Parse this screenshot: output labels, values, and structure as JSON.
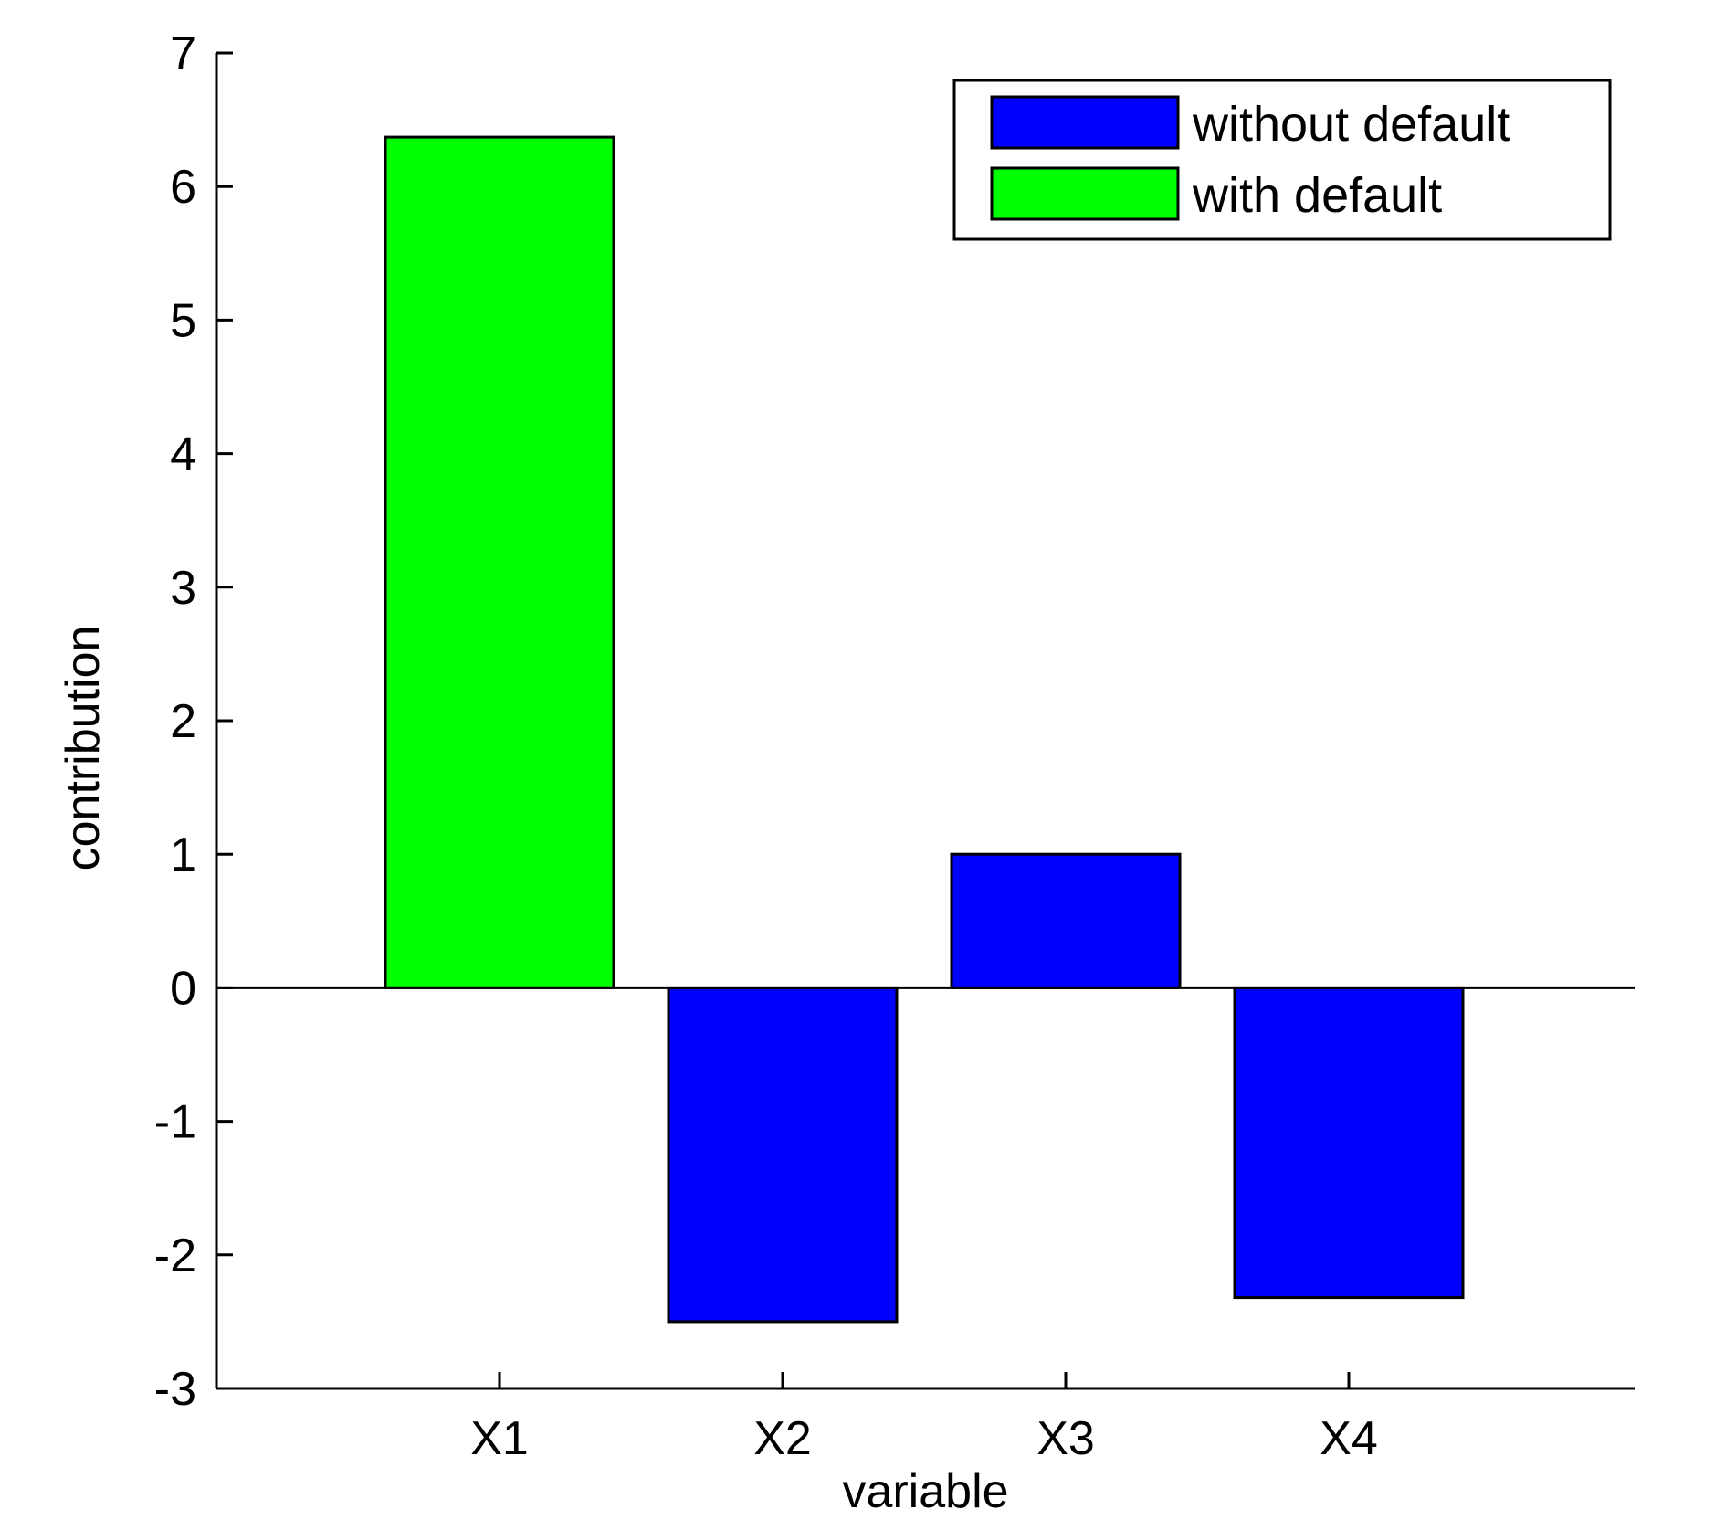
{
  "chart_data": {
    "type": "bar",
    "categories": [
      "X1",
      "X2",
      "X3",
      "X4"
    ],
    "series": [
      {
        "name": "without default",
        "color": "#0000ff",
        "values": [
          null,
          -2.5,
          1.0,
          -2.32
        ]
      },
      {
        "name": "with default",
        "color": "#00ff00",
        "values": [
          6.37,
          null,
          null,
          null
        ]
      }
    ],
    "xlabel": "variable",
    "ylabel": "contribution",
    "ylim": [
      -3,
      7
    ],
    "yticks": [
      -3,
      -2,
      -1,
      0,
      1,
      2,
      3,
      4,
      5,
      6,
      7
    ],
    "grid": false,
    "legend_position": "top-right"
  }
}
